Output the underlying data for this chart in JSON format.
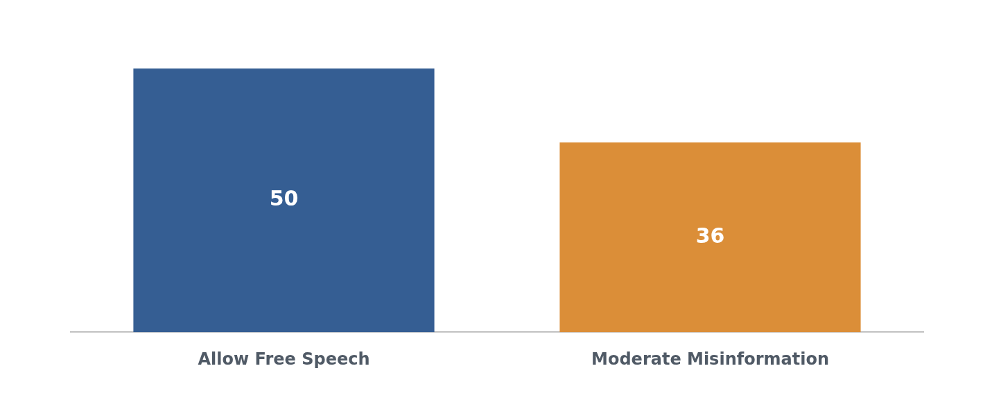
{
  "chart_data": {
    "type": "bar",
    "categories": [
      "Allow Free Speech",
      "Moderate Misinformation"
    ],
    "values": [
      50,
      36
    ],
    "colors": [
      "#355e93",
      "#db8e38"
    ],
    "data_labels": true,
    "grid": false,
    "legend": false
  }
}
